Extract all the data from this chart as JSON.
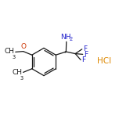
{
  "background_color": "#ffffff",
  "bond_color": "#1a1a1a",
  "N_color": "#2222cc",
  "O_color": "#cc3300",
  "F_color": "#2222cc",
  "Cl_color": "#dd8800",
  "line_width": 0.9,
  "font_size": 6.5,
  "font_size_sub": 4.8,
  "font_size_hcl": 7.5,
  "figsize": [
    1.52,
    1.52
  ],
  "dpi": 100,
  "xlim": [
    -1.8,
    5.8
  ],
  "ylim": [
    -2.5,
    2.5
  ]
}
